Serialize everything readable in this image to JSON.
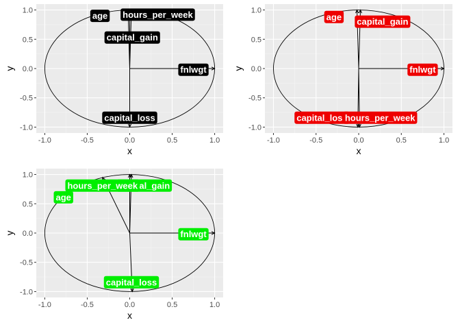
{
  "chart_data": [
    {
      "type": "vector-biplot",
      "xlabel": "x",
      "ylabel": "y",
      "xlim": [
        -1.0,
        1.0
      ],
      "ylim": [
        -1.0,
        1.0
      ],
      "xticks": [
        "-1.0",
        "-0.5",
        "0.0",
        "0.5",
        "1.0"
      ],
      "yticks": [
        "-1.0",
        "-0.5",
        "0.0",
        "0.5",
        "1.0"
      ],
      "grid": true,
      "circle": true,
      "label_color": "#000000",
      "label_text_color": "#ffffff",
      "vectors": [
        {
          "name": "age",
          "x": -0.02,
          "y": 1.0
        },
        {
          "name": "hours_per_week",
          "x": 0.02,
          "y": 1.0
        },
        {
          "name": "capital_gain",
          "x": 0.0,
          "y": 1.0
        },
        {
          "name": "fnlwgt",
          "x": 1.0,
          "y": 0.0
        },
        {
          "name": "capital_loss",
          "x": 0.0,
          "y": -1.0
        }
      ],
      "labels": [
        {
          "name": "age",
          "x": -0.35,
          "y": 0.9
        },
        {
          "name": "hours_per_week",
          "x": 0.33,
          "y": 0.92
        },
        {
          "name": "capital_gain",
          "x": 0.03,
          "y": 0.53
        },
        {
          "name": "fnlwgt",
          "x": 0.75,
          "y": -0.02
        },
        {
          "name": "capital_loss",
          "x": 0.0,
          "y": -0.84
        }
      ]
    },
    {
      "type": "vector-biplot",
      "xlabel": "x",
      "ylabel": "y",
      "xlim": [
        -1.0,
        1.0
      ],
      "ylim": [
        -1.0,
        1.0
      ],
      "xticks": [
        "-1.0",
        "-0.5",
        "0.0",
        "0.5",
        "1.0"
      ],
      "yticks": [
        "-1.0",
        "-0.5",
        "0.0",
        "0.5",
        "1.0"
      ],
      "grid": true,
      "circle": true,
      "label_color": "#ee0000",
      "label_text_color": "#ffffff",
      "vectors": [
        {
          "name": "age",
          "x": -0.02,
          "y": 1.0
        },
        {
          "name": "capital_gain",
          "x": 0.02,
          "y": 1.0
        },
        {
          "name": "fnlwgt",
          "x": 1.0,
          "y": 0.0
        },
        {
          "name": "capital_loss",
          "x": -0.01,
          "y": -1.0
        },
        {
          "name": "hours_per_week",
          "x": 0.01,
          "y": -1.0
        }
      ],
      "labels": [
        {
          "name": "age",
          "x": -0.29,
          "y": 0.88
        },
        {
          "name": "capital_gain",
          "x": 0.28,
          "y": 0.8
        },
        {
          "name": "fnlwgt",
          "x": 0.75,
          "y": -0.02
        },
        {
          "name": "capital_loss",
          "x": -0.43,
          "y": -0.84
        },
        {
          "name": "hours_per_week",
          "x": 0.25,
          "y": -0.84
        }
      ]
    },
    {
      "type": "vector-biplot",
      "xlabel": "x",
      "ylabel": "y",
      "xlim": [
        -1.0,
        1.0
      ],
      "ylim": [
        -1.0,
        1.0
      ],
      "xticks": [
        "-1.0",
        "-0.5",
        "0.0",
        "0.5",
        "1.0"
      ],
      "yticks": [
        "-1.0",
        "-0.5",
        "0.0",
        "0.5",
        "1.0"
      ],
      "grid": true,
      "circle": true,
      "label_color": "#00ee00",
      "label_text_color": "#ffffff",
      "vectors": [
        {
          "name": "age",
          "x": -0.32,
          "y": 0.95
        },
        {
          "name": "hours_per_week",
          "x": 0.0,
          "y": 1.0
        },
        {
          "name": "capital_gain",
          "x": 0.02,
          "y": 1.0
        },
        {
          "name": "fnlwgt",
          "x": 1.0,
          "y": 0.0
        },
        {
          "name": "capital_loss",
          "x": 0.03,
          "y": -1.0
        }
      ],
      "labels": [
        {
          "name": "capital_gain",
          "x": 0.17,
          "y": 0.81
        },
        {
          "name": "hours_per_week",
          "x": -0.32,
          "y": 0.81
        },
        {
          "name": "age",
          "x": -0.78,
          "y": 0.61
        },
        {
          "name": "fnlwgt",
          "x": 0.75,
          "y": -0.02
        },
        {
          "name": "capital_loss",
          "x": 0.02,
          "y": -0.84
        }
      ]
    }
  ]
}
